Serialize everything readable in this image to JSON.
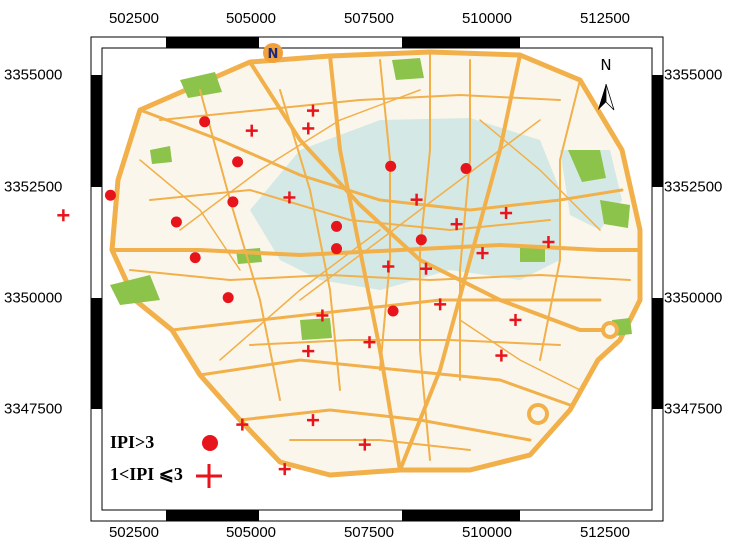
{
  "map": {
    "x_ticks": [
      "502500",
      "505000",
      "507500",
      "510000",
      "512500"
    ],
    "y_ticks": [
      "3355000",
      "3352500",
      "3350000",
      "3347500"
    ],
    "north_label": "N",
    "legend": [
      {
        "label": "IPI>3",
        "symbol": "red-circle"
      },
      {
        "label": "1<IPI ⩽3",
        "symbol": "red-cross"
      }
    ],
    "colors": {
      "marker": "#e8141b",
      "road": "#f2b04a",
      "park": "#8cc34a",
      "center_district": "#cfe8e4",
      "background": "#ffffff"
    },
    "points_ipi_gt_3": [
      [
        504000,
        3353950
      ],
      [
        504700,
        3353050
      ],
      [
        502000,
        3352300
      ],
      [
        504600,
        3352150
      ],
      [
        503400,
        3351700
      ],
      [
        503800,
        3350900
      ],
      [
        504500,
        3350000
      ],
      [
        506800,
        3351600
      ],
      [
        506800,
        3351100
      ],
      [
        507950,
        3352950
      ],
      [
        508600,
        3351300
      ],
      [
        509550,
        3352900
      ],
      [
        508000,
        3349700
      ]
    ],
    "points_ipi_1_to_3": [
      [
        506300,
        3354200
      ],
      [
        505000,
        3353750
      ],
      [
        506200,
        3353800
      ],
      [
        501000,
        3351850
      ],
      [
        505800,
        3352250
      ],
      [
        508500,
        3352200
      ],
      [
        510400,
        3351900
      ],
      [
        509350,
        3351650
      ],
      [
        511300,
        3351250
      ],
      [
        509900,
        3351000
      ],
      [
        507900,
        3350700
      ],
      [
        508700,
        3350650
      ],
      [
        509000,
        3349850
      ],
      [
        510600,
        3349500
      ],
      [
        506500,
        3349600
      ],
      [
        507500,
        3349000
      ],
      [
        506200,
        3348800
      ],
      [
        510300,
        3348700
      ],
      [
        504800,
        3347150
      ],
      [
        506300,
        3347250
      ],
      [
        507400,
        3346700
      ],
      [
        505700,
        3346150
      ]
    ]
  }
}
